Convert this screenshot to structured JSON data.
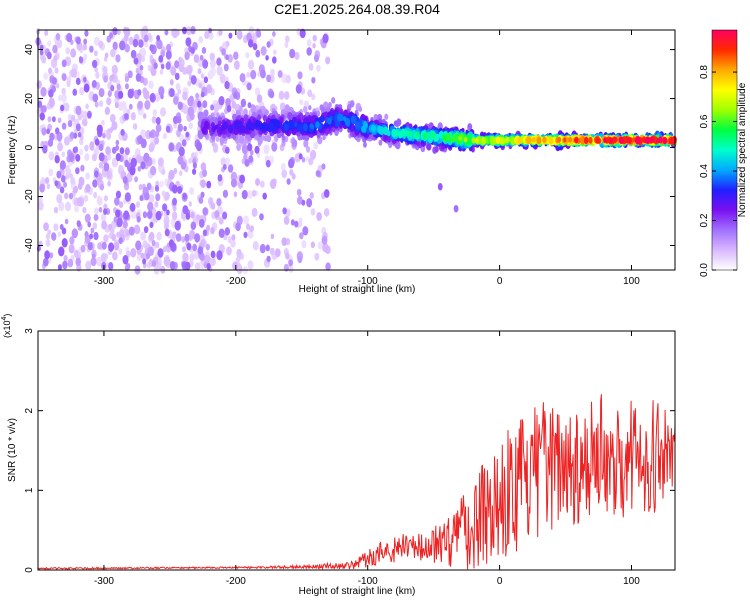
{
  "figure_title": "C2E1.2025.264.08.39.R04",
  "chart_data": [
    {
      "type": "heatmap",
      "title": "C2E1.2025.264.08.39.R04",
      "xlabel": "Height of straight line (km)",
      "ylabel": "Frequency (Hz)",
      "xlim": [
        -350,
        133
      ],
      "ylim": [
        -50,
        48
      ],
      "xticks": [
        -300,
        -200,
        -100,
        0,
        100
      ],
      "yticks": [
        -40,
        -20,
        0,
        20,
        40
      ],
      "description_of_field": "Scattered weak purple speckle spanning all frequencies for heights below about -130 km; a concentrated ridge near +8 Hz from -220 to -120 km; ridge narrowing toward 2-3 Hz with increasing amplitude reaching about 0.95 beyond 0 km; two isolated blobs near (-45,-16) and (-33,-25).",
      "ridge": {
        "x": [
          -220,
          -180,
          -140,
          -120,
          -100,
          -80,
          -60,
          -40,
          -20,
          0,
          40,
          80,
          133
        ],
        "y": [
          8,
          9,
          9,
          12,
          8,
          6,
          5,
          4,
          3,
          3,
          3,
          3,
          3
        ],
        "amplitude": [
          0.25,
          0.3,
          0.35,
          0.35,
          0.4,
          0.45,
          0.5,
          0.55,
          0.65,
          0.7,
          0.8,
          0.9,
          0.95
        ]
      },
      "colorbar": {
        "label": "Normalized spectral amplitude",
        "range": [
          0,
          0.97
        ],
        "ticks": [
          "0.0",
          "0.2",
          "0.4",
          "0.6",
          "0.8"
        ],
        "tick_values": [
          0,
          0.2,
          0.4,
          0.6,
          0.8
        ],
        "colors": [
          "#ffffff",
          "#d9b8ff",
          "#a070ff",
          "#7a10f0",
          "#2020ff",
          "#00aaff",
          "#00ffcc",
          "#00ff40",
          "#a0ff00",
          "#ffff00",
          "#ffaa00",
          "#ff2a00",
          "#ff0060"
        ]
      }
    },
    {
      "type": "line",
      "xlabel": "Height of straight line (km)",
      "ylabel": "SNR (10 * v/v)",
      "multiplier_label": "(x10",
      "multiplier_exponent": "4",
      "multiplier_close": ")",
      "xlim": [
        -350,
        133
      ],
      "ylim": [
        0,
        3
      ],
      "xticks": [
        -300,
        -200,
        -100,
        0,
        100
      ],
      "yticks": [
        0,
        1,
        2,
        3
      ],
      "series": [
        {
          "name": "SNR",
          "color": "#ee2222",
          "envelope_x": [
            -350,
            -200,
            -150,
            -110,
            -100,
            -90,
            -75,
            -60,
            -45,
            -30,
            -15,
            0,
            15,
            30,
            50,
            70,
            90,
            110,
            133
          ],
          "envelope_mean": [
            0.02,
            0.03,
            0.04,
            0.06,
            0.15,
            0.22,
            0.28,
            0.28,
            0.35,
            0.45,
            0.7,
            0.95,
            1.05,
            1.25,
            1.35,
            1.4,
            1.45,
            1.45,
            1.45
          ],
          "envelope_spread": [
            0.01,
            0.01,
            0.02,
            0.05,
            0.12,
            0.15,
            0.18,
            0.2,
            0.3,
            0.45,
            0.7,
            0.8,
            0.85,
            0.85,
            0.8,
            0.8,
            0.8,
            0.75,
            0.7
          ]
        }
      ]
    }
  ]
}
